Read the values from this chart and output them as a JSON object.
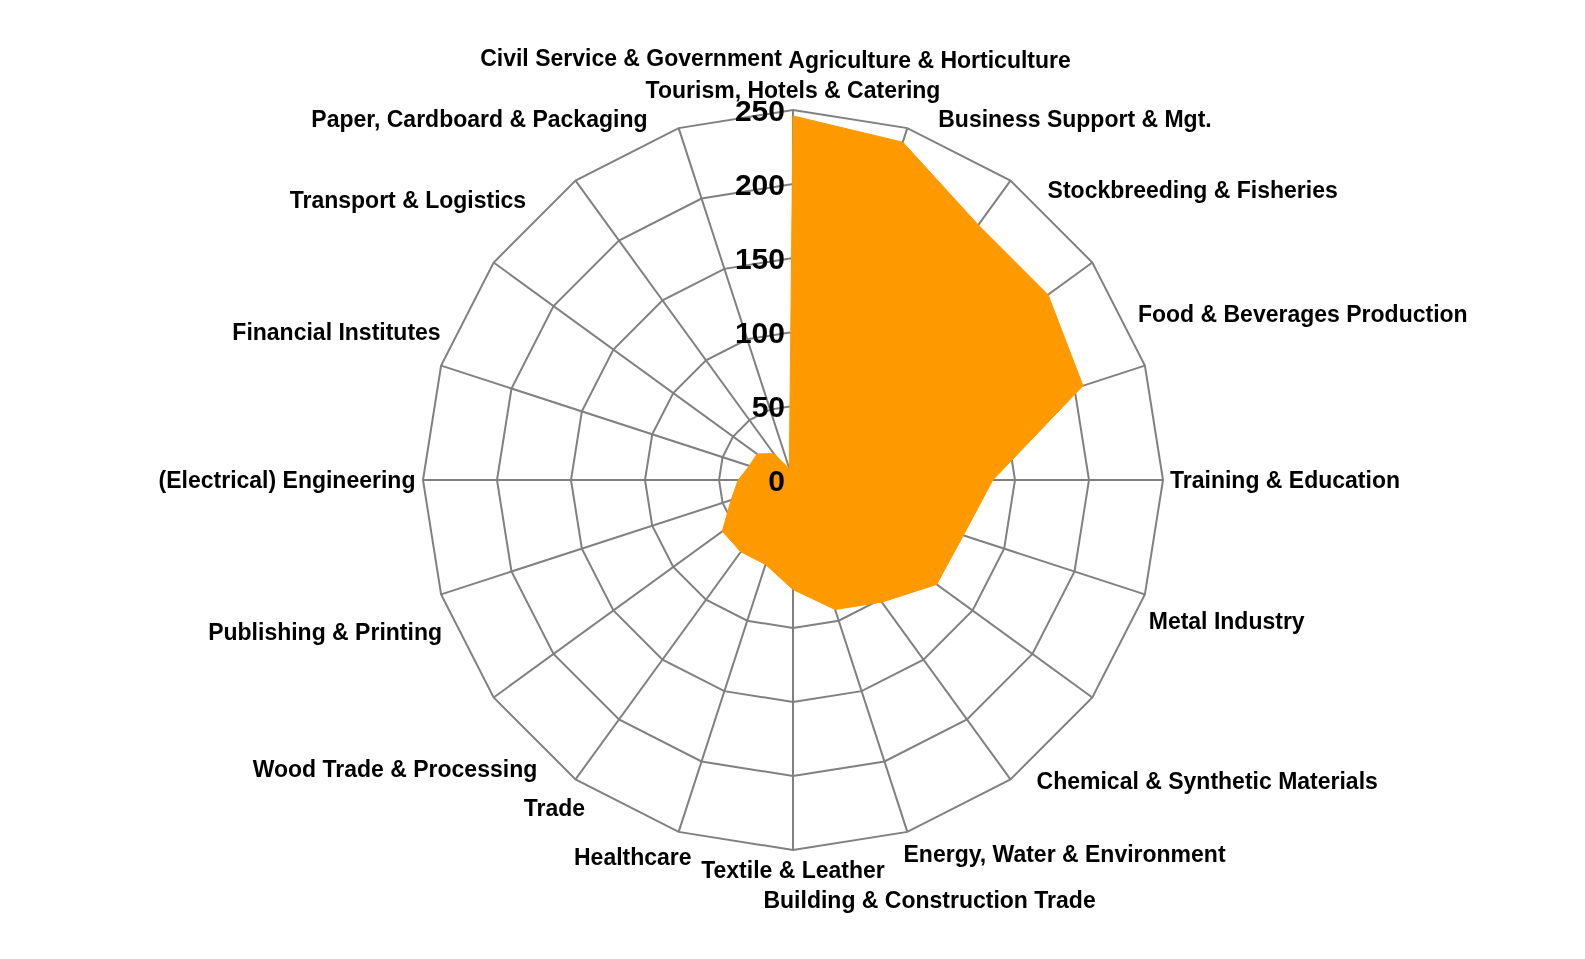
{
  "chart_data": {
    "type": "radar",
    "categories": [
      "Tourism, Hotels & Catering",
      "Agriculture & Horticulture",
      "Business Support & Mgt.",
      "Stockbreeding & Fisheries",
      "Food & Beverages Production",
      "Training & Education",
      "Metal Industry",
      "Chemical & Synthetic Materials",
      "Energy, Water & Environment",
      "Building & Construction Trade",
      "Textile & Leather",
      "Healthcare",
      "Trade",
      "Wood Trade & Processing",
      "Publishing & Printing",
      "(Electrical) Engineering",
      "Financial Institutes",
      "Transport & Logistics",
      "Paper, Cardboard & Packaging",
      "Civil Service & Government"
    ],
    "series": [
      {
        "color": "#ff9900",
        "values": [
          246,
          240,
          213,
          213,
          206,
          135,
          121,
          120,
          102,
          92,
          74,
          60,
          60,
          59,
          44,
          37,
          31,
          30,
          22,
          8
        ]
      }
    ],
    "ylim": [
      0,
      250
    ],
    "yticks": [
      0,
      50,
      100,
      150,
      200,
      250
    ],
    "grid": true
  }
}
